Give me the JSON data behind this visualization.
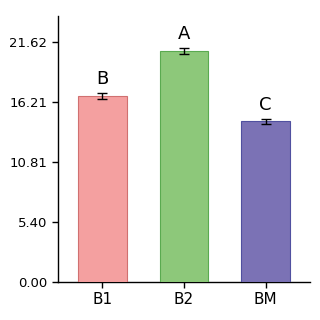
{
  "categories": [
    "B1",
    "B2",
    "BM"
  ],
  "values": [
    16.8,
    20.85,
    14.5
  ],
  "errors": [
    0.28,
    0.28,
    0.22
  ],
  "bar_colors": [
    "#F4A0A0",
    "#8DC87A",
    "#7B72B5"
  ],
  "bar_edgecolors": [
    "#d07070",
    "#5aaa50",
    "#5050a0"
  ],
  "significance_labels": [
    "B",
    "A",
    "C"
  ],
  "yticks": [
    0.0,
    5.4,
    10.81,
    16.21,
    21.62
  ],
  "ylim": [
    0,
    24.0
  ],
  "bar_width": 0.6,
  "tick_fontsize": 9.5,
  "label_fontsize": 11,
  "sig_fontsize": 13,
  "background_color": "#ffffff"
}
